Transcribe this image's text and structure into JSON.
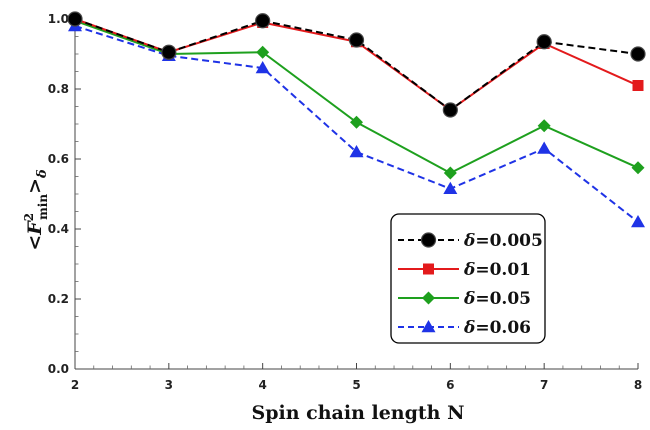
{
  "chart_data": {
    "type": "line",
    "xlabel": "Spin chain length N",
    "ylabel": {
      "prefix": "<",
      "var": "F",
      "sup": "2",
      "sub": "min",
      "suffix": ">",
      "index": "δ"
    },
    "x_ticks": [
      "2",
      "3",
      "4",
      "5",
      "6",
      "7",
      "8"
    ],
    "y_ticks": [
      "0.0",
      "0.2",
      "0.4",
      "0.6",
      "0.8",
      "1.0"
    ],
    "xlim": [
      2,
      8
    ],
    "ylim": [
      0,
      1.0
    ],
    "grid": false,
    "legend_position": "bottom-right",
    "x": [
      2,
      3,
      4,
      5,
      6,
      7,
      8
    ],
    "series": [
      {
        "name": "δ=0.005",
        "values": [
          1.0,
          0.905,
          0.995,
          0.94,
          0.74,
          0.935,
          0.9
        ],
        "color": "#000000",
        "marker": "circle",
        "dashed": true
      },
      {
        "name": "δ=0.01",
        "values": [
          1.0,
          0.905,
          0.99,
          0.935,
          0.74,
          0.93,
          0.81
        ],
        "color": "#e31a1c",
        "marker": "square",
        "dashed": false
      },
      {
        "name": "δ=0.05",
        "values": [
          0.995,
          0.9,
          0.905,
          0.705,
          0.56,
          0.695,
          0.575
        ],
        "color": "#1ea01e",
        "marker": "diamond",
        "dashed": false
      },
      {
        "name": "δ=0.06",
        "values": [
          0.98,
          0.895,
          0.86,
          0.62,
          0.515,
          0.63,
          0.42
        ],
        "color": "#1f33e6",
        "marker": "triangle",
        "dashed": true
      }
    ]
  }
}
